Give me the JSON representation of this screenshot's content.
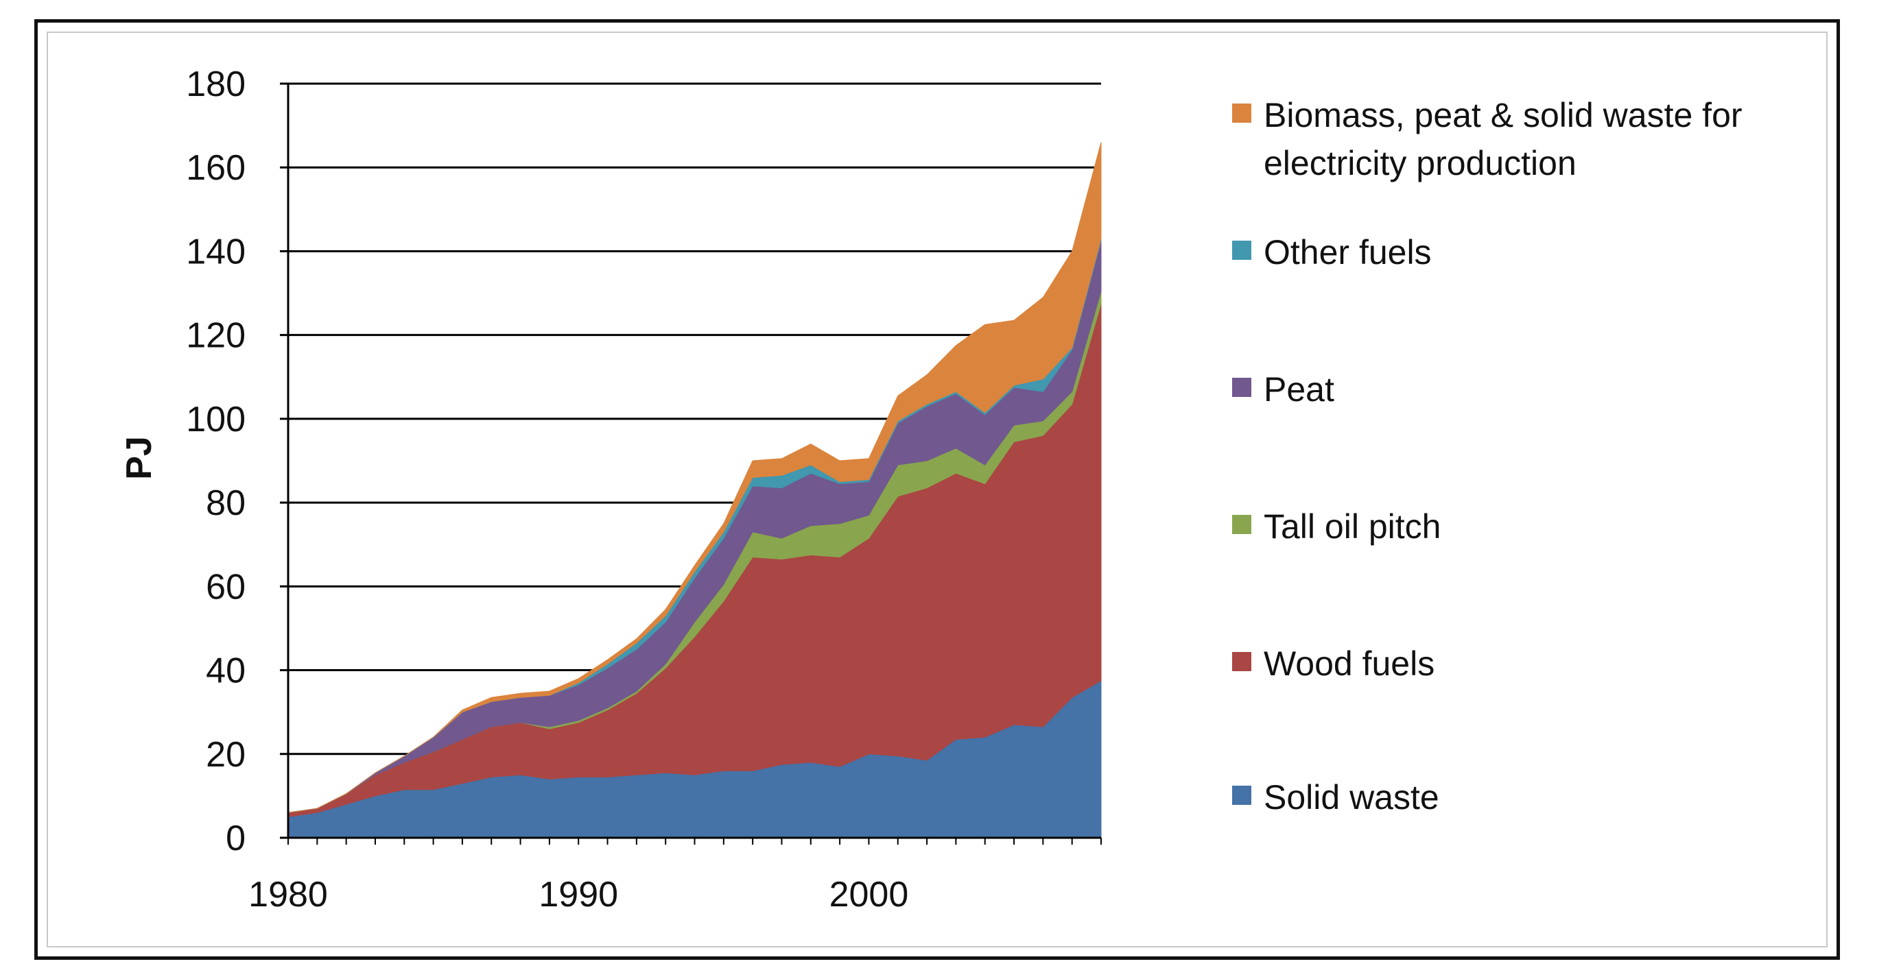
{
  "chart_data": {
    "type": "area",
    "stacked": true,
    "title": "",
    "xlabel": "",
    "ylabel": "PJ",
    "ylim": [
      0,
      180
    ],
    "xlim": [
      1980,
      2008
    ],
    "y_ticks": [
      0,
      20,
      40,
      60,
      80,
      100,
      120,
      140,
      160,
      180
    ],
    "x_ticks": [
      1980,
      1990,
      2000
    ],
    "grid": "horizontal",
    "legend_position": "right",
    "x": [
      1980,
      1981,
      1982,
      1983,
      1984,
      1985,
      1986,
      1987,
      1988,
      1989,
      1990,
      1991,
      1992,
      1993,
      1994,
      1995,
      1996,
      1997,
      1998,
      1999,
      2000,
      2001,
      2002,
      2003,
      2004,
      2005,
      2006,
      2007,
      2008
    ],
    "series": [
      {
        "name": "Solid waste",
        "color": "#4572a7",
        "values": [
          5,
          6,
          8,
          10,
          11.5,
          11.5,
          13,
          14.5,
          15,
          14,
          14.5,
          14.5,
          15,
          15.5,
          15,
          16,
          16,
          17.5,
          18,
          17,
          20,
          19.5,
          18.5,
          23.5,
          24,
          27,
          26.5,
          33.5,
          37.5
        ]
      },
      {
        "name": "Wood fuels",
        "color": "#aa4643",
        "values": [
          1,
          1,
          2.5,
          5,
          6.5,
          9,
          10.5,
          12,
          12.5,
          12,
          13,
          16,
          19.5,
          25,
          33,
          40.5,
          51,
          49,
          49.5,
          50,
          51.5,
          62,
          65,
          63.5,
          60.5,
          67.5,
          69.5,
          70,
          90
        ]
      },
      {
        "name": "Tall oil pitch",
        "color": "#89a54e",
        "values": [
          0,
          0,
          0,
          0,
          0,
          0,
          0,
          0,
          0,
          0.5,
          0.5,
          0.5,
          0.5,
          1,
          3.5,
          4,
          6,
          5,
          7,
          8,
          5.5,
          7.5,
          6.5,
          6,
          4.5,
          4,
          3.5,
          3,
          3
        ]
      },
      {
        "name": "Peat",
        "color": "#71588f",
        "values": [
          0,
          0,
          0,
          0.5,
          1.5,
          3.5,
          6.5,
          6,
          6,
          7.5,
          8.5,
          9.5,
          10,
          10,
          10.5,
          11,
          11,
          12,
          12.5,
          9.5,
          8,
          10,
          13,
          13,
          12,
          9,
          7,
          10,
          12
        ]
      },
      {
        "name": "Other fuels",
        "color": "#4198af",
        "values": [
          0,
          0,
          0,
          0,
          0,
          0,
          0,
          0,
          0,
          0,
          0.5,
          1,
          1.5,
          1.5,
          1.5,
          1.5,
          2,
          3,
          2,
          0.5,
          0.5,
          0.5,
          0.5,
          0.5,
          0.5,
          0.5,
          3,
          0.5,
          0.5
        ]
      },
      {
        "name": "Biomass, peat & solid waste for electricity production",
        "color": "#db843d",
        "values": [
          0,
          0,
          0,
          0,
          0,
          0,
          0.5,
          1,
          1,
          1,
          1,
          1,
          1,
          1.5,
          1.5,
          2,
          4,
          4,
          5,
          5,
          5,
          6,
          7,
          11,
          21,
          15.5,
          19.5,
          23,
          23
        ]
      }
    ],
    "legend_order": [
      "Biomass, peat & solid waste for electricity production",
      "Other fuels",
      "Peat",
      "Tall oil pitch",
      "Wood fuels",
      "Solid waste"
    ],
    "legend_lines": {
      "Biomass, peat & solid waste for electricity production": [
        "Biomass, peat & solid waste for",
        "electricity production"
      ],
      "Other fuels": [
        "Other fuels"
      ],
      "Peat": [
        "Peat"
      ],
      "Tall oil pitch": [
        "Tall oil pitch"
      ],
      "Wood fuels": [
        "Wood fuels"
      ],
      "Solid waste": [
        "Solid waste"
      ]
    }
  }
}
